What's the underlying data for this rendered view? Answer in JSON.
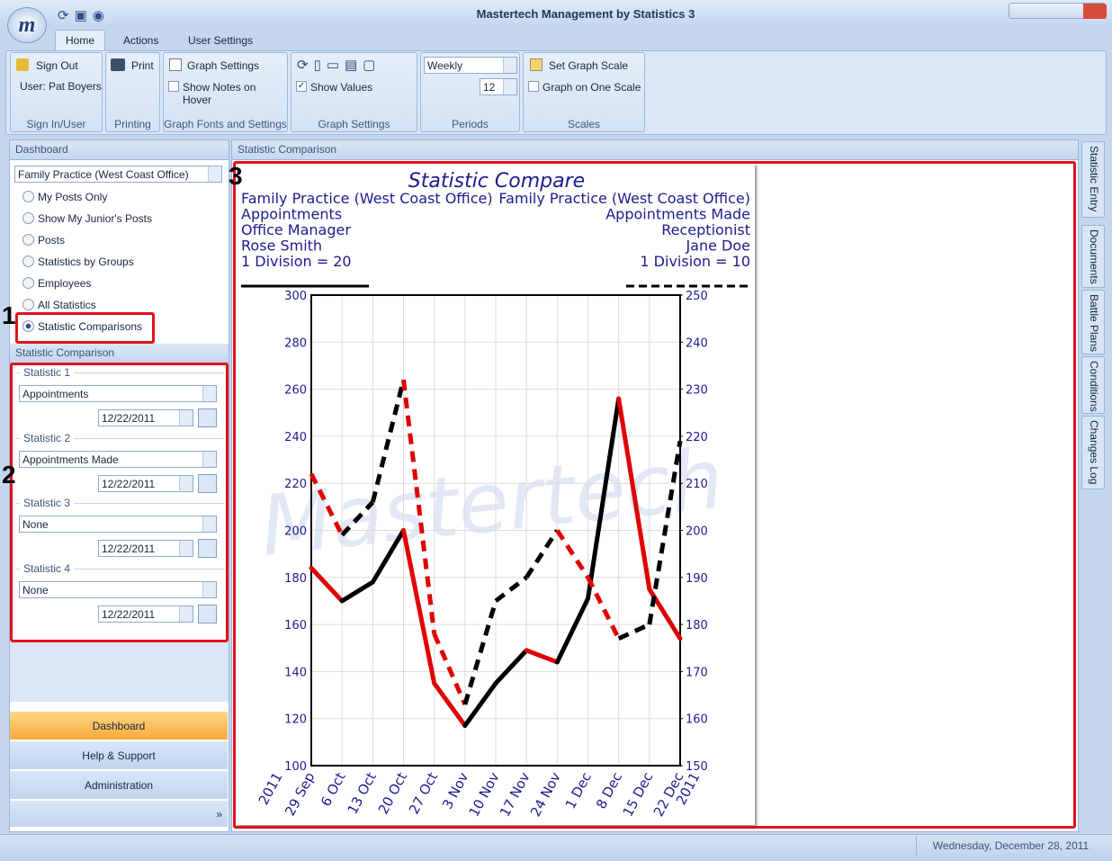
{
  "window": {
    "title": "Mastertech Management by Statistics 3"
  },
  "ribbon": {
    "tabs": [
      "Home",
      "Actions",
      "User Settings"
    ],
    "groups": [
      {
        "label": "Sign In/User",
        "items": [
          "Sign Out",
          "User: Pat Boyers"
        ]
      },
      {
        "label": "Printing",
        "items": [
          "Print"
        ]
      },
      {
        "label": "Graph Fonts and Settings",
        "items": [
          "Graph Settings",
          "Show Notes on Hover"
        ]
      },
      {
        "label": "Graph Settings",
        "items": [
          "Show Values"
        ]
      },
      {
        "label": "Periods",
        "items": [
          "Weekly",
          "12"
        ]
      },
      {
        "label": "Scales",
        "items": [
          "Set Graph Scale",
          "Graph on One Scale"
        ]
      }
    ]
  },
  "dashboard": {
    "title": "Dashboard",
    "dropdown": "Family Practice (West Coast Office)",
    "options": [
      "My Posts Only",
      "Show My Junior's Posts",
      "Posts",
      "Statistics by Groups",
      "Employees",
      "All Statistics",
      "Statistic Comparisons"
    ]
  },
  "comparison": {
    "title": "Statistic Comparison",
    "statistics": [
      {
        "label": "Statistic 1",
        "value": "Appointments",
        "date": "12/22/2011"
      },
      {
        "label": "Statistic 2",
        "value": "Appointments Made",
        "date": "12/22/2011"
      },
      {
        "label": "Statistic 3",
        "value": "None",
        "date": "12/22/2011"
      },
      {
        "label": "Statistic 4",
        "value": "None",
        "date": "12/22/2011"
      }
    ]
  },
  "nav": [
    "Dashboard",
    "Help & Support",
    "Administration"
  ],
  "main": {
    "title": "Statistic Comparison"
  },
  "side_tabs": [
    "Statistic Entry",
    "Documents",
    "Battle Plans",
    "Conditions",
    "Changes Log"
  ],
  "status": "Wednesday, December 28, 2011",
  "callouts": [
    "1",
    "2",
    "3"
  ],
  "chart_data": {
    "type": "line",
    "title": "Statistic Compare",
    "watermark": "Mastertech",
    "left_header": [
      "Family Practice (West Coast Office)",
      "Appointments",
      "Office Manager",
      "Rose Smith",
      "1 Division = 20"
    ],
    "right_header": [
      "Family Practice (West Coast Office)",
      "Appointments Made",
      "Receptionist",
      "Jane Doe",
      "1 Division = 10"
    ],
    "x_year_labels": [
      "2011",
      "2011"
    ],
    "categories": [
      "29 Sep",
      "6 Oct",
      "13 Oct",
      "20 Oct",
      "27 Oct",
      "3 Nov",
      "10 Nov",
      "17 Nov",
      "24 Nov",
      "1 Dec",
      "8 Dec",
      "15 Dec",
      "22 Dec"
    ],
    "up_color": "#000000",
    "down_color": "#e00000",
    "grid": true,
    "series": [
      {
        "axis": "y",
        "dash": "solid",
        "values": [
          184,
          170,
          178,
          200,
          135,
          117,
          135,
          149,
          144,
          171,
          256,
          175,
          154
        ]
      },
      {
        "axis": "y2",
        "dash": "dashed",
        "values": [
          212,
          199,
          206,
          232,
          178,
          163,
          185,
          190,
          200,
          190,
          177,
          180,
          219
        ]
      }
    ],
    "ylim": [
      100,
      300
    ],
    "yticks": [
      100,
      120,
      140,
      160,
      180,
      200,
      220,
      240,
      260,
      280,
      300
    ],
    "y2lim": [
      150,
      250
    ],
    "y2ticks": [
      150,
      160,
      170,
      180,
      190,
      200,
      210,
      220,
      230,
      240,
      250
    ]
  }
}
